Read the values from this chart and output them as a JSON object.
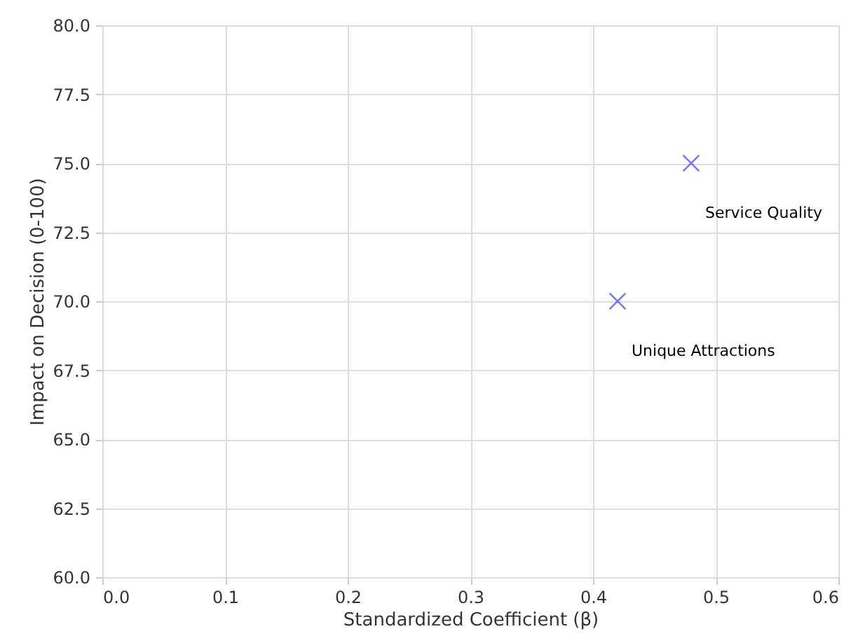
{
  "chart_data": {
    "type": "scatter",
    "xlabel": "Standardized Coefficient (β)",
    "ylabel": "Impact on Decision (0-100)",
    "x": [
      0.42,
      0.48
    ],
    "series": [
      {
        "color": "#4040f0",
        "values": [
          70,
          75
        ]
      }
    ],
    "marker": "cross",
    "grid": true,
    "xlim": [
      0,
      0.6
    ],
    "xticks": [
      {
        "value": 0,
        "label": "0.0"
      },
      0.1,
      0.2,
      0.3,
      0.4,
      0.5,
      0.6
    ],
    "ylim": [
      60,
      80
    ],
    "yticks": [
      {
        "value": 60,
        "label": "60.0"
      },
      62.5,
      {
        "value": 65,
        "label": "65.0"
      },
      67.5,
      {
        "value": 70,
        "label": "70.0"
      },
      72.5,
      {
        "value": 75,
        "label": "75.0"
      },
      77.5,
      {
        "value": 80,
        "label": "80.0"
      }
    ],
    "annotations": [
      {
        "text": "Unique Attractions",
        "x": 0.42,
        "y": 70
      },
      {
        "text": "Service Quality",
        "x": 0.48,
        "y": 75
      }
    ]
  }
}
